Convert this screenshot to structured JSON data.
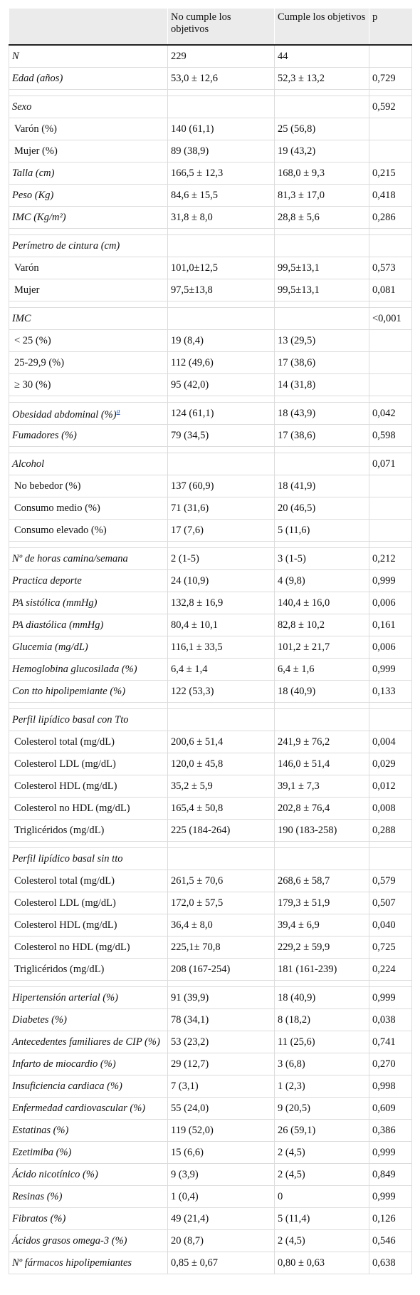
{
  "table": {
    "header": [
      null,
      "No cumple los objetivos",
      "Cumple los objetivos",
      "p"
    ],
    "groups": [
      [
        [
          "N",
          "229",
          "44",
          null
        ],
        [
          "Edad (años)",
          "53,0 ± 12,6",
          "52,3 ± 13,2",
          "0,729"
        ]
      ],
      [
        {
          "cells": [
            "Sexo",
            null,
            null,
            "0,592"
          ],
          "items": [
            [
              "Varón (%)",
              "140 (61,1)",
              "25 (56,8)",
              null
            ],
            [
              "Mujer (%)",
              "89 (38,9)",
              "19 (43,2)",
              null
            ]
          ]
        },
        [
          "Talla (cm)",
          "166,5 ± 12,3",
          "168,0 ± 9,3",
          "0,215"
        ],
        [
          "Peso (Kg)",
          "84,6 ± 15,5",
          "81,3 ± 17,0",
          "0,418"
        ],
        [
          "IMC (Kg/m²)",
          "31,8 ± 8,0",
          "28,8 ± 5,6",
          "0,286"
        ]
      ],
      [
        {
          "cells": [
            "Perímetro de cintura (cm)",
            null,
            null,
            null
          ],
          "items": [
            [
              "Varón",
              "101,0±12,5",
              "99,5±13,1",
              "0,573"
            ],
            [
              "Mujer",
              "97,5±13,8",
              "99,5±13,1",
              "0,081"
            ]
          ]
        }
      ],
      [
        {
          "cells": [
            "IMC",
            null,
            null,
            "<0,001"
          ],
          "items": [
            [
              "< 25 (%)",
              "19 (8,4)",
              "13 (29,5)",
              null
            ],
            [
              "25-29,9 (%)",
              "112 (49,6)",
              "17 (38,6)",
              null
            ],
            [
              "≥ 30 (%)",
              "95 (42,0)",
              "14 (31,8)",
              null
            ]
          ]
        }
      ],
      [
        [
          {
            "text": "Obesidad abdominal (%)",
            "sup": "a"
          },
          "124 (61,1)",
          "18 (43,9)",
          "0,042"
        ],
        [
          "Fumadores (%)",
          "79 (34,5)",
          "17 (38,6)",
          "0,598"
        ]
      ],
      [
        {
          "cells": [
            "Alcohol",
            null,
            null,
            "0,071"
          ],
          "items": [
            [
              "No bebedor (%)",
              "137 (60,9)",
              "18 (41,9)",
              null
            ],
            [
              "Consumo medio (%)",
              "71 (31,6)",
              "20 (46,5)",
              null
            ],
            [
              "Consumo elevado (%)",
              "17 (7,6)",
              "5 (11,6)",
              null
            ]
          ]
        }
      ],
      [
        [
          "Nº de horas camina/semana",
          "2 (1-5)",
          "3 (1-5)",
          "0,212"
        ],
        [
          "Practica deporte",
          "24 (10,9)",
          "4 (9,8)",
          "0,999"
        ],
        [
          "PA sistólica (mmHg)",
          "132,8 ± 16,9",
          "140,4 ± 16,0",
          "0,006"
        ],
        [
          "PA diastólica (mmHg)",
          "80,4 ± 10,1",
          "82,8 ± 10,2",
          "0,161"
        ],
        [
          "Glucemia (mg/dL)",
          "116,1 ± 33,5",
          "101,2 ± 21,7",
          "0,006"
        ],
        [
          "Hemoglobina glucosilada (%)",
          "6,4 ± 1,4",
          "6,4 ± 1,6",
          "0,999"
        ],
        [
          "Con tto hipolipemiante (%)",
          "122 (53,3)",
          "18 (40,9)",
          "0,133"
        ]
      ],
      [
        {
          "cells": [
            "Perfil lipídico basal con Tto",
            null,
            null,
            null
          ],
          "items": [
            [
              "Colesterol total (mg/dL)",
              "200,6 ± 51,4",
              "241,9 ± 76,2",
              "0,004"
            ],
            [
              "Colesterol LDL (mg/dL)",
              "120,0 ± 45,8",
              "146,0 ± 51,4",
              "0,029"
            ],
            [
              "Colesterol HDL (mg/dL)",
              "35,2 ± 5,9",
              "39,1 ± 7,3",
              "0,012"
            ],
            [
              "Colesterol no HDL (mg/dL)",
              "165,4 ± 50,8",
              "202,8 ± 76,4",
              "0,008"
            ],
            [
              "Triglicéridos (mg/dL)",
              "225 (184-264)",
              "190 (183-258)",
              "0,288"
            ]
          ]
        }
      ],
      [
        {
          "cells": [
            "Perfil lipídico basal sin tto",
            null,
            null,
            null
          ],
          "items": [
            [
              "Colesterol total (mg/dL)",
              "261,5 ± 70,6",
              "268,6 ± 58,7",
              "0,579"
            ],
            [
              "Colesterol LDL (mg/dL)",
              "172,0 ± 57,5",
              "179,3 ± 51,9",
              "0,507"
            ],
            [
              "Colesterol HDL (mg/dL)",
              "36,4 ± 8,0",
              "39,4 ± 6,9",
              "0,040"
            ],
            [
              "Colesterol no HDL (mg/dL)",
              "225,1± 70,8",
              "229,2 ± 59,9",
              "0,725"
            ],
            [
              "Triglicéridos (mg/dL)",
              "208 (167-254)",
              "181 (161-239)",
              "0,224"
            ]
          ]
        }
      ],
      [
        [
          "Hipertensión arterial (%)",
          "91 (39,9)",
          "18 (40,9)",
          "0,999"
        ],
        [
          "Diabetes (%)",
          "78 (34,1)",
          "8 (18,2)",
          "0,038"
        ],
        [
          "Antecedentes familiares de CIP (%)",
          "53 (23,2)",
          "11 (25,6)",
          "0,741"
        ],
        [
          "Infarto de miocardio (%)",
          "29 (12,7)",
          "3 (6,8)",
          "0,270"
        ],
        [
          "Insuficiencia cardiaca (%)",
          "7 (3,1)",
          "1 (2,3)",
          "0,998"
        ],
        [
          "Enfermedad cardiovascular (%)",
          "55 (24,0)",
          "9 (20,5)",
          "0,609"
        ],
        [
          "Estatinas (%)",
          "119 (52,0)",
          "26 (59,1)",
          "0,386"
        ],
        [
          "Ezetimiba (%)",
          "15 (6,6)",
          "2 (4,5)",
          "0,999"
        ],
        [
          "Ácido nicotínico (%)",
          "9 (3,9)",
          "2 (4,5)",
          "0,849"
        ],
        [
          "Resinas (%)",
          "1 (0,4)",
          "0",
          "0,999"
        ],
        [
          "Fibratos (%)",
          "49 (21,4)",
          "5 (11,4)",
          "0,126"
        ],
        [
          "Ácidos grasos omega-3 (%)",
          "20 (8,7)",
          "2 (4,5)",
          "0,546"
        ],
        [
          "Nº fármacos hipolipemiantes",
          "0,85 ± 0,67",
          "0,80 ± 0,63",
          "0,638"
        ]
      ]
    ]
  }
}
